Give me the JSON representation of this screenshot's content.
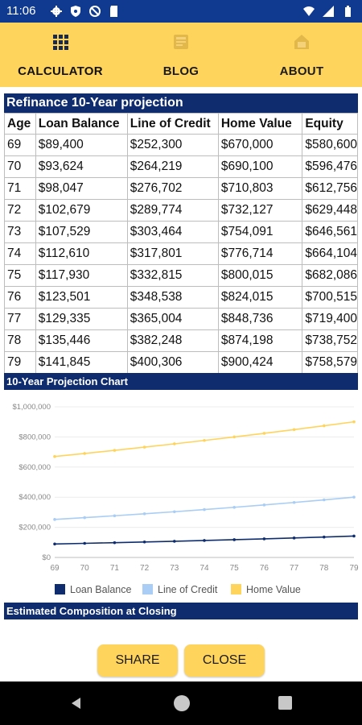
{
  "status_bar": {
    "time": "11:06",
    "icons_left": [
      "gear-icon",
      "shield-icon",
      "no-sync-icon",
      "sd-card-icon"
    ],
    "icons_right": [
      "wifi-icon",
      "cellular-signal-icon",
      "battery-icon"
    ]
  },
  "tabs": [
    {
      "label": "CALCULATOR",
      "icon": "grid-icon",
      "active": true
    },
    {
      "label": "BLOG",
      "icon": "book-icon",
      "active": false
    },
    {
      "label": "ABOUT",
      "icon": "house-icon",
      "active": false
    }
  ],
  "table": {
    "title": "Refinance 10-Year projection",
    "headers": [
      "Age",
      "Loan Balance",
      "Line of Credit",
      "Home Value",
      "Equity"
    ],
    "rows": [
      [
        "69",
        "$89,400",
        "$252,300",
        "$670,000",
        "$580,600"
      ],
      [
        "70",
        "$93,624",
        "$264,219",
        "$690,100",
        "$596,476"
      ],
      [
        "71",
        "$98,047",
        "$276,702",
        "$710,803",
        "$612,756"
      ],
      [
        "72",
        "$102,679",
        "$289,774",
        "$732,127",
        "$629,448"
      ],
      [
        "73",
        "$107,529",
        "$303,464",
        "$754,091",
        "$646,561"
      ],
      [
        "74",
        "$112,610",
        "$317,801",
        "$776,714",
        "$664,104"
      ],
      [
        "75",
        "$117,930",
        "$332,815",
        "$800,015",
        "$682,086"
      ],
      [
        "76",
        "$123,501",
        "$348,538",
        "$824,015",
        "$700,515"
      ],
      [
        "77",
        "$129,335",
        "$365,004",
        "$848,736",
        "$719,400"
      ],
      [
        "78",
        "$135,446",
        "$382,248",
        "$874,198",
        "$738,752"
      ],
      [
        "79",
        "$141,845",
        "$400,306",
        "$900,424",
        "$758,579"
      ]
    ]
  },
  "chart_section": {
    "title": "10-Year Projection Chart"
  },
  "chart_data": {
    "type": "line",
    "x": [
      69,
      70,
      71,
      72,
      73,
      74,
      75,
      76,
      77,
      78,
      79
    ],
    "series": [
      {
        "name": "Loan Balance",
        "color": "#0f2d6e",
        "values": [
          89400,
          93624,
          98047,
          102679,
          107529,
          112610,
          117930,
          123501,
          129335,
          135446,
          141845
        ]
      },
      {
        "name": "Line of Credit",
        "color": "#a9cdf4",
        "values": [
          252300,
          264219,
          276702,
          289774,
          303464,
          317801,
          332815,
          348538,
          365004,
          382248,
          400306
        ]
      },
      {
        "name": "Home Value",
        "color": "#ffd45c",
        "values": [
          670000,
          690100,
          710803,
          732127,
          754091,
          776714,
          800015,
          824015,
          848736,
          874198,
          900424
        ]
      }
    ],
    "y_ticks": [
      "$0",
      "$200,000",
      "$400,000",
      "$600,000",
      "$800,000",
      "$1,000,000"
    ],
    "ylim": [
      0,
      1000000
    ],
    "grid": true,
    "legend": "bottom"
  },
  "composition_section": {
    "title": "Estimated Composition at Closing"
  },
  "buttons": {
    "share": "SHARE",
    "close": "CLOSE"
  },
  "nav_bar": {
    "icons": [
      "back-icon",
      "home-icon",
      "recents-icon"
    ]
  }
}
